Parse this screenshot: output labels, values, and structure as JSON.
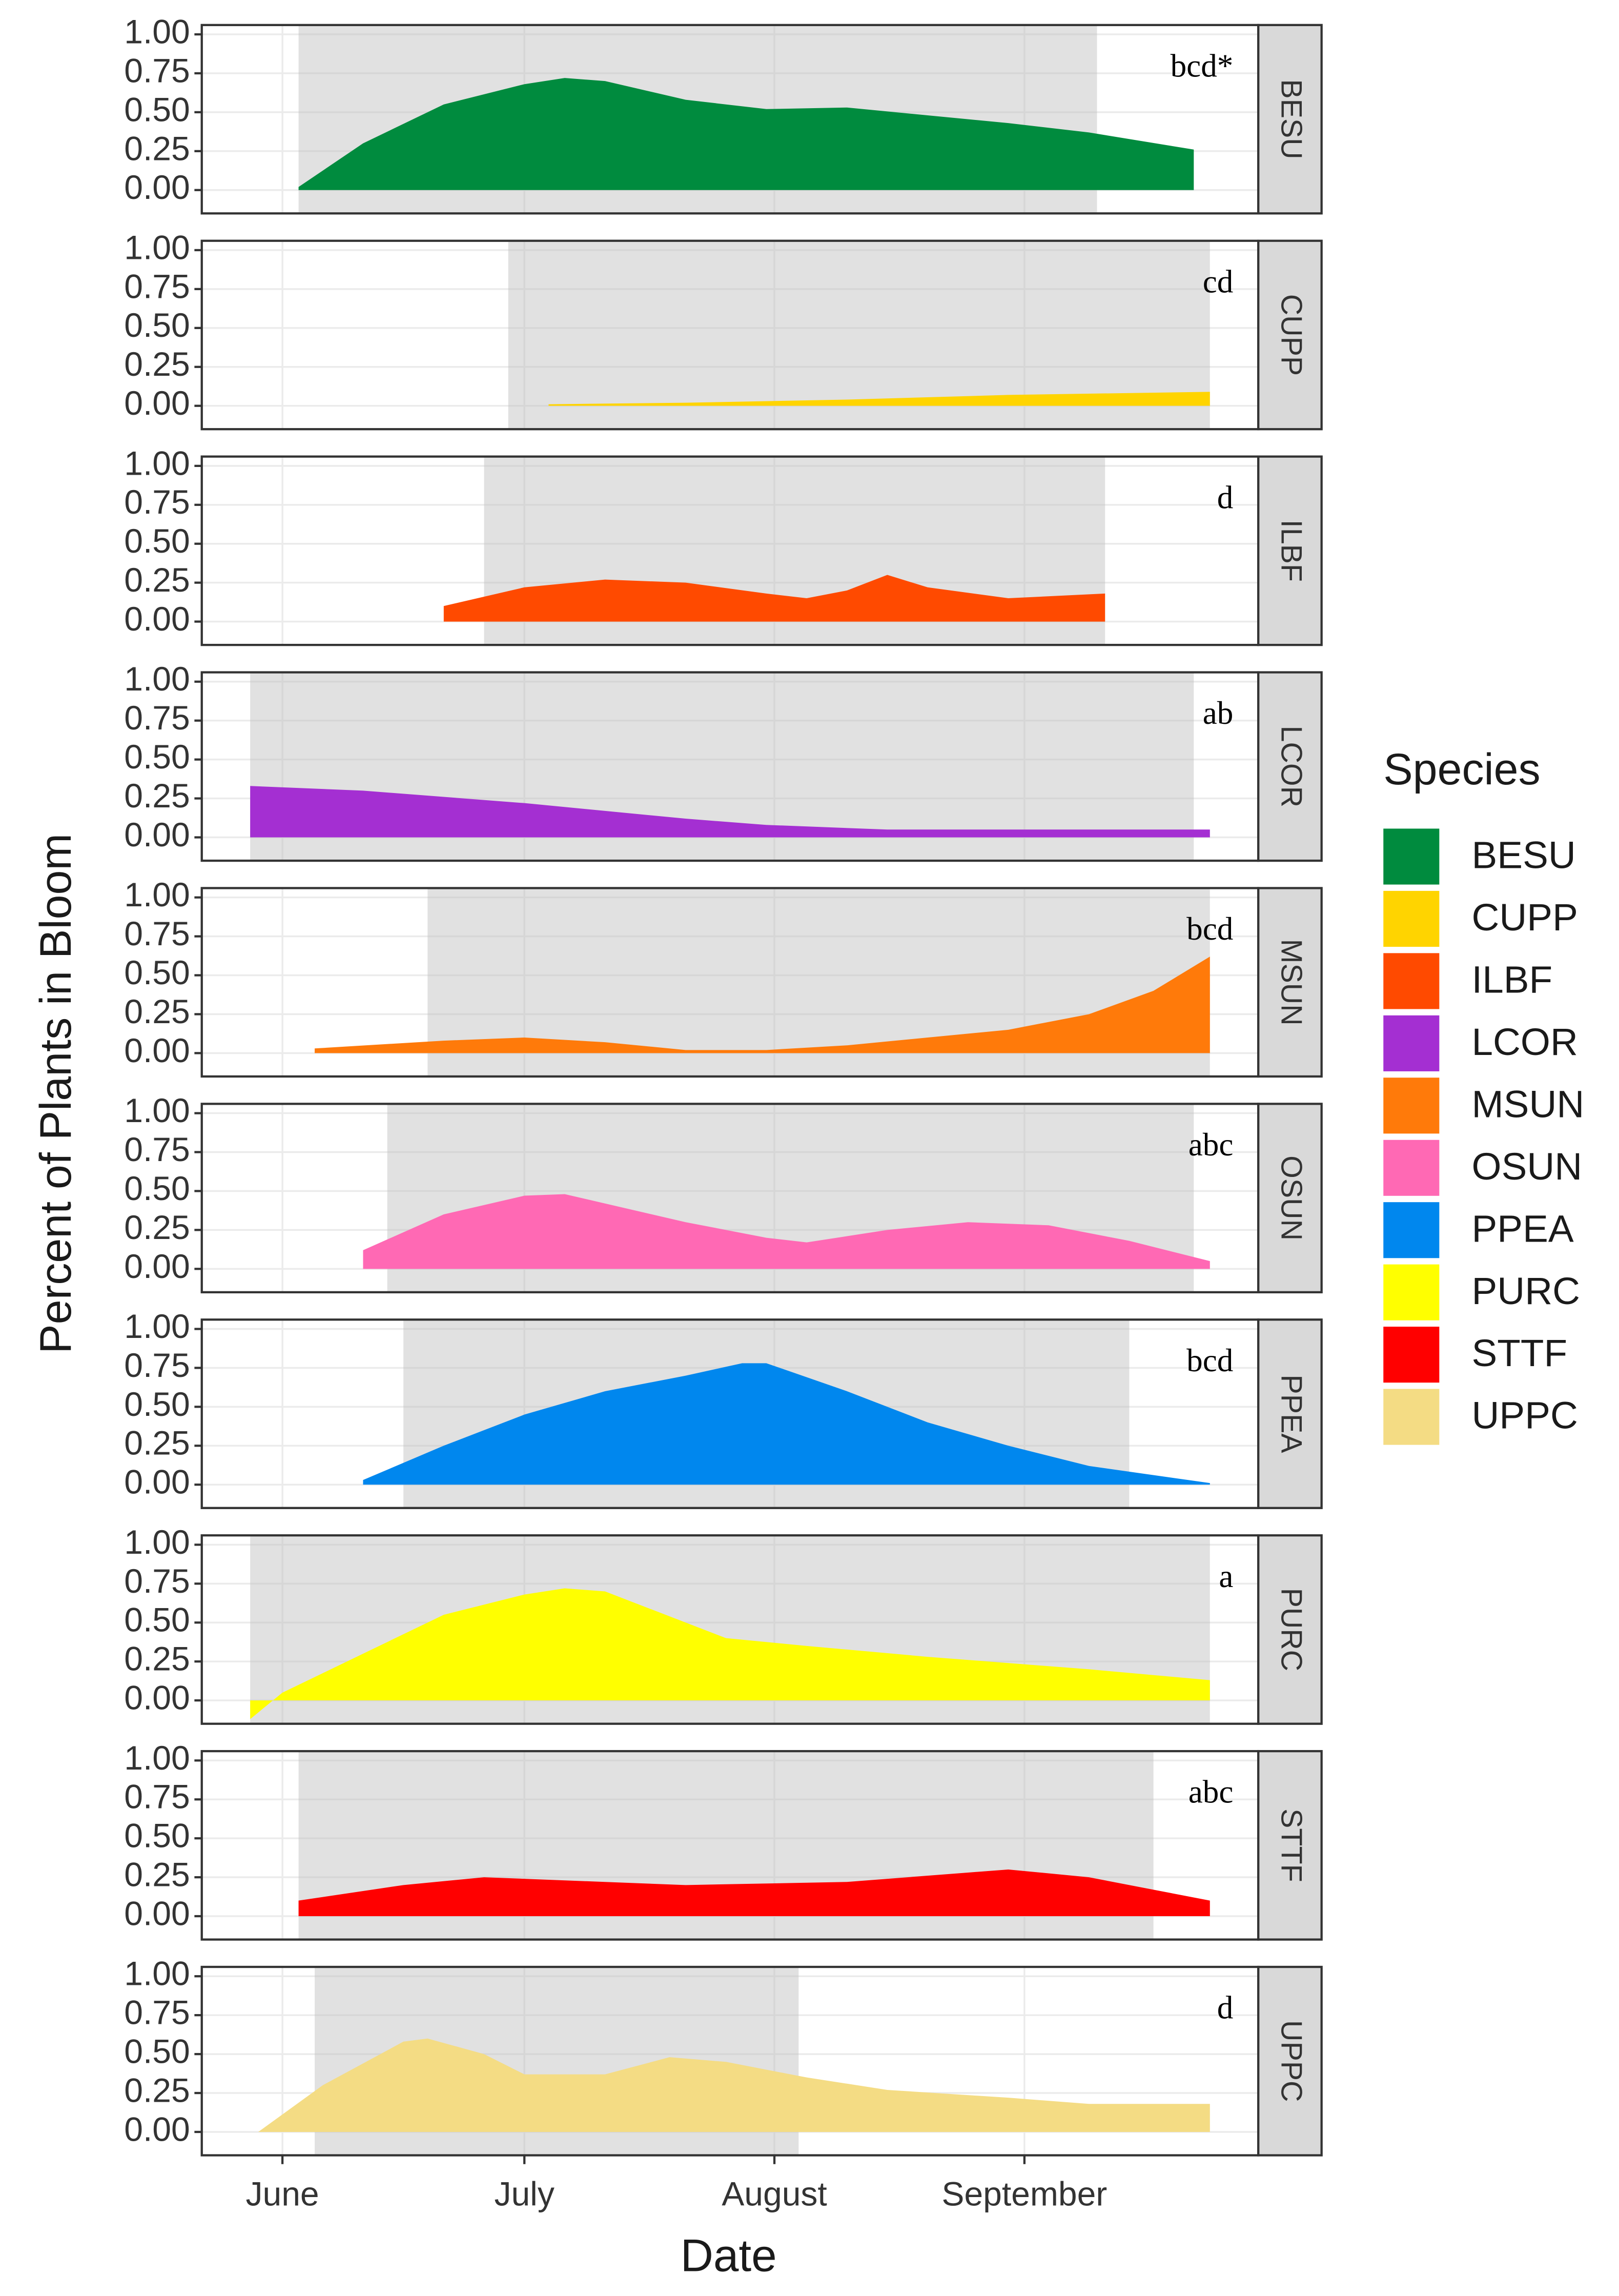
{
  "chart_data": {
    "type": "area",
    "x_label": "Date",
    "y_label": "Percent of Plants in Bloom",
    "legend_title": "Species",
    "xlim": [
      -10,
      121
    ],
    "xticks": [
      {
        "value": 0,
        "label": "June"
      },
      {
        "value": 30,
        "label": "July"
      },
      {
        "value": 61,
        "label": "August"
      },
      {
        "value": 92,
        "label": "September"
      }
    ],
    "ylim": [
      -0.15,
      1.06
    ],
    "yticks": [
      {
        "value": 0,
        "label": "0.00"
      },
      {
        "value": 0.25,
        "label": "0.25"
      },
      {
        "value": 0.5,
        "label": "0.50"
      },
      {
        "value": 0.75,
        "label": "0.75"
      },
      {
        "value": 1,
        "label": "1.00"
      }
    ],
    "grid": true,
    "series": [
      {
        "name": "BESU",
        "color": "#008b3e",
        "annotation": "bcd*",
        "shade": [
          2,
          101
        ],
        "x": [
          2,
          10,
          20,
          30,
          35,
          40,
          50,
          60,
          70,
          80,
          90,
          100,
          113
        ],
        "values": [
          0.02,
          0.3,
          0.55,
          0.68,
          0.72,
          0.7,
          0.58,
          0.52,
          0.53,
          0.48,
          0.43,
          0.37,
          0.26
        ]
      },
      {
        "name": "CUPP",
        "color": "#ffd400",
        "annotation": "cd",
        "shade": [
          28,
          115
        ],
        "x": [
          33,
          50,
          70,
          90,
          115
        ],
        "values": [
          0.01,
          0.02,
          0.04,
          0.07,
          0.09
        ]
      },
      {
        "name": "ILBF",
        "color": "#ff4a00",
        "annotation": "d",
        "shade": [
          25,
          102
        ],
        "x": [
          20,
          30,
          40,
          50,
          60,
          65,
          70,
          75,
          80,
          90,
          102
        ],
        "values": [
          0.1,
          0.22,
          0.27,
          0.25,
          0.18,
          0.15,
          0.2,
          0.3,
          0.22,
          0.15,
          0.18
        ]
      },
      {
        "name": "LCOR",
        "color": "#a42fd2",
        "annotation": "ab",
        "shade": [
          -4,
          113
        ],
        "x": [
          -4,
          10,
          30,
          50,
          60,
          75,
          90,
          115
        ],
        "values": [
          0.33,
          0.3,
          0.22,
          0.12,
          0.08,
          0.05,
          0.05,
          0.05
        ]
      },
      {
        "name": "MSUN",
        "color": "#ff7a0a",
        "annotation": "bcd",
        "shade": [
          18,
          115
        ],
        "x": [
          4,
          20,
          30,
          40,
          50,
          60,
          70,
          80,
          90,
          100,
          108,
          115
        ],
        "values": [
          0.03,
          0.08,
          0.1,
          0.07,
          0.02,
          0.02,
          0.05,
          0.1,
          0.15,
          0.25,
          0.4,
          0.62
        ]
      },
      {
        "name": "OSUN",
        "color": "#ff69b4",
        "annotation": "abc",
        "shade": [
          13,
          113
        ],
        "x": [
          10,
          20,
          30,
          35,
          40,
          50,
          60,
          65,
          75,
          85,
          95,
          105,
          115
        ],
        "values": [
          0.12,
          0.35,
          0.47,
          0.48,
          0.42,
          0.3,
          0.2,
          0.17,
          0.25,
          0.3,
          0.28,
          0.18,
          0.05
        ]
      },
      {
        "name": "PPEA",
        "color": "#0087ee",
        "annotation": "bcd",
        "shade": [
          15,
          105
        ],
        "x": [
          10,
          20,
          30,
          40,
          50,
          57,
          60,
          70,
          80,
          90,
          100,
          115
        ],
        "values": [
          0.03,
          0.25,
          0.45,
          0.6,
          0.7,
          0.78,
          0.78,
          0.6,
          0.4,
          0.25,
          0.12,
          0.01
        ]
      },
      {
        "name": "PURC",
        "color": "#ffff00",
        "annotation": "a",
        "shade": [
          -4,
          115
        ],
        "x": [
          -4,
          0,
          10,
          20,
          30,
          35,
          40,
          50,
          55,
          65,
          80,
          100,
          115
        ],
        "values": [
          -0.12,
          0.05,
          0.3,
          0.55,
          0.68,
          0.72,
          0.7,
          0.5,
          0.4,
          0.35,
          0.28,
          0.2,
          0.13
        ]
      },
      {
        "name": "STTF",
        "color": "#ff0000",
        "annotation": "abc",
        "shade": [
          2,
          108
        ],
        "x": [
          2,
          15,
          25,
          40,
          50,
          70,
          85,
          90,
          100,
          115
        ],
        "values": [
          0.1,
          0.2,
          0.25,
          0.22,
          0.2,
          0.22,
          0.28,
          0.3,
          0.25,
          0.1
        ]
      },
      {
        "name": "UPPC",
        "color": "#f4dc84",
        "annotation": "d",
        "shade": [
          4,
          64
        ],
        "x": [
          -3,
          5,
          15,
          18,
          25,
          30,
          40,
          48,
          55,
          65,
          75,
          90,
          100,
          115
        ],
        "values": [
          0.0,
          0.3,
          0.58,
          0.6,
          0.5,
          0.37,
          0.37,
          0.48,
          0.45,
          0.35,
          0.27,
          0.22,
          0.18,
          0.18
        ]
      }
    ]
  }
}
